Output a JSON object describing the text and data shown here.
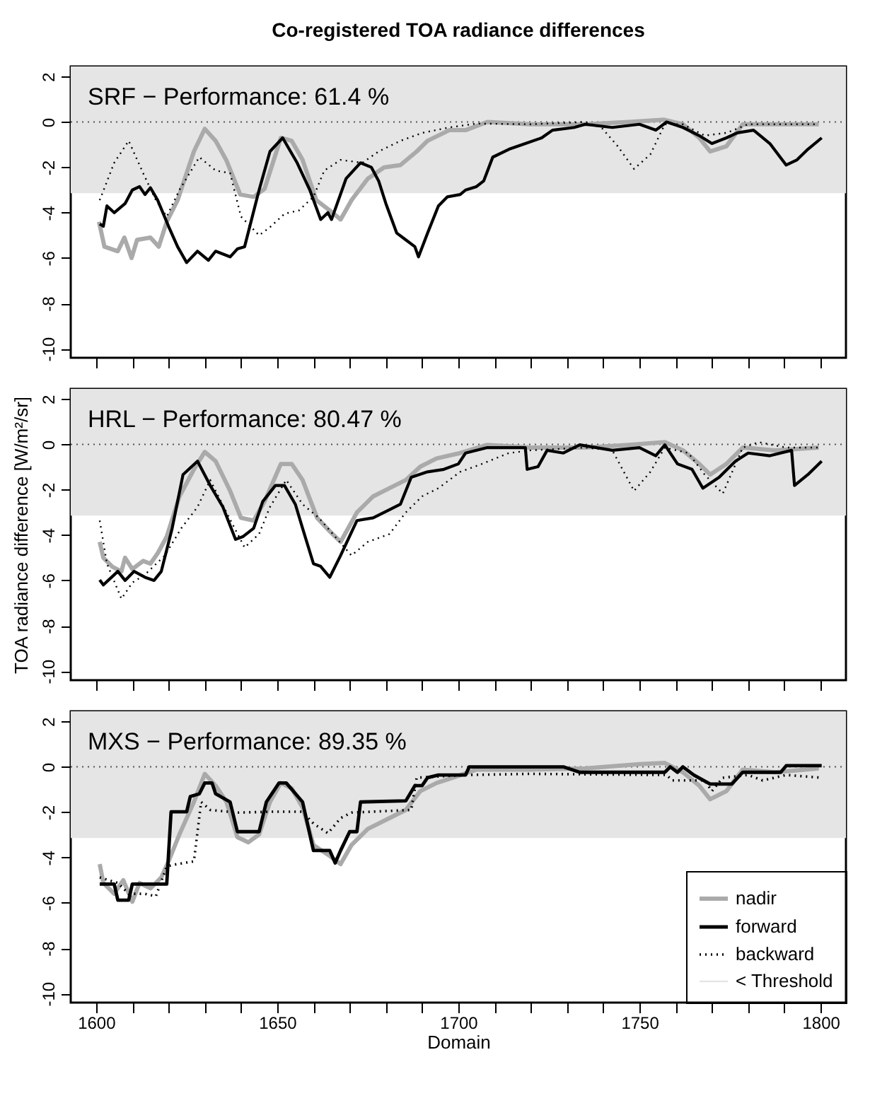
{
  "chart_data": [
    {
      "type": "line",
      "title": "Co-registered TOA radiance differences",
      "annotations": [
        "SRF  − Performance: 61.4 %"
      ],
      "xlim": [
        1593,
        1807
      ],
      "ylim": [
        -10.4,
        2.45
      ],
      "xticks": [
        1600,
        {
          "value": 1610,
          "label": null
        },
        {
          "value": 1620,
          "label": null
        },
        {
          "value": 1630,
          "label": null
        },
        {
          "value": 1640,
          "label": null
        },
        1650,
        {
          "value": 1660,
          "label": null
        },
        {
          "value": 1670,
          "label": null
        },
        {
          "value": 1680,
          "label": null
        },
        {
          "value": 1690,
          "label": null
        },
        1700,
        {
          "value": 1710,
          "label": null
        },
        {
          "value": 1720,
          "label": null
        },
        {
          "value": 1730,
          "label": null
        },
        {
          "value": 1740,
          "label": null
        },
        1750,
        {
          "value": 1760,
          "label": null
        },
        {
          "value": 1770,
          "label": null
        },
        {
          "value": 1780,
          "label": null
        },
        {
          "value": 1790,
          "label": null
        },
        1800
      ],
      "yticks": [
        -10,
        -8,
        -6,
        -4,
        -2,
        0,
        2
      ],
      "tick_labels": "y",
      "grid": false,
      "legend": false,
      "ref_lines": [
        {
          "axis": "y",
          "value": 0,
          "line_style": "dotted",
          "color": "#555555"
        }
      ],
      "bands": [
        {
          "axis": "y",
          "from": -3.14,
          "to": 2.45,
          "color": "#e5e5e5"
        }
      ],
      "series": [
        {
          "color": "#aaaaaa",
          "line_style": "solid",
          "x": [
            1600.8,
            1602.3,
            1606,
            1607.8,
            1609.8,
            1611.3,
            1615,
            1617.3,
            1619.5,
            1622.5,
            1627,
            1630,
            1633,
            1636,
            1639.8,
            1643.5,
            1646.5,
            1651,
            1654,
            1657,
            1660.8,
            1664.5,
            1667.5,
            1670.5,
            1675,
            1679.5,
            1684,
            1688.5,
            1691.5,
            1697.5,
            1702,
            1708,
            1720,
            1735,
            1747,
            1756.8,
            1762,
            1766.5,
            1769.5,
            1774,
            1778.5,
            1787.5,
            1799.5
          ],
          "values": [
            -4.4,
            -5.5,
            -5.7,
            -5.1,
            -6,
            -5.2,
            -5.1,
            -5.5,
            -4.4,
            -3.45,
            -1.3,
            -0.3,
            -0.83,
            -1.7,
            -3.2,
            -3.3,
            -2.95,
            -0.7,
            -0.83,
            -1.67,
            -3.45,
            -3.9,
            -4.3,
            -3.45,
            -2.5,
            -2.0,
            -1.9,
            -1.3,
            -0.83,
            -0.36,
            -0.36,
            0,
            -0.1,
            -0.1,
            0,
            0.1,
            -0.1,
            -0.7,
            -1.3,
            -1.07,
            -0.1,
            -0.1,
            -0.1
          ]
        },
        {
          "color": "#000000",
          "line_style": "solid",
          "x": [
            1601,
            1602,
            1603,
            1605,
            1608,
            1610,
            1612,
            1613.5,
            1615,
            1617,
            1620,
            1622.5,
            1625,
            1628,
            1631,
            1633,
            1637,
            1639,
            1641,
            1645,
            1648,
            1651.5,
            1655.5,
            1659,
            1662,
            1664,
            1665,
            1669,
            1673,
            1676,
            1678,
            1680,
            1683,
            1685.5,
            1688,
            1689,
            1691.5,
            1694.5,
            1697,
            1700.5,
            1702,
            1705,
            1707,
            1709.5,
            1714,
            1718.5,
            1723,
            1726,
            1732,
            1735,
            1742.5,
            1750,
            1754.5,
            1757.5,
            1762,
            1766.5,
            1770,
            1774,
            1777,
            1781.5,
            1786,
            1790.5,
            1793.5,
            1796.5,
            1800.3
          ],
          "values": [
            -4.5,
            -4.6,
            -3.7,
            -4.0,
            -3.6,
            -3.0,
            -2.85,
            -3.2,
            -2.9,
            -3.45,
            -4.6,
            -5.5,
            -6.2,
            -5.7,
            -6.1,
            -5.7,
            -5.95,
            -5.6,
            -5.5,
            -3.0,
            -1.3,
            -0.7,
            -1.8,
            -3.0,
            -4.3,
            -4.0,
            -4.3,
            -2.5,
            -1.8,
            -2.0,
            -2.6,
            -3.6,
            -4.9,
            -5.2,
            -5.5,
            -5.95,
            -4.9,
            -3.7,
            -3.3,
            -3.2,
            -3.0,
            -2.85,
            -2.6,
            -1.55,
            -1.2,
            -0.95,
            -0.7,
            -0.36,
            -0.24,
            -0.1,
            -0.24,
            -0.1,
            -0.36,
            0,
            -0.24,
            -0.6,
            -0.95,
            -0.7,
            -0.48,
            -0.36,
            -0.95,
            -1.9,
            -1.67,
            -1.2,
            -0.7
          ]
        },
        {
          "color": "#000000",
          "line_style": "dotted",
          "x": [
            1601,
            1605,
            1609,
            1613,
            1616.5,
            1619.5,
            1623,
            1628.5,
            1633,
            1637,
            1640,
            1645,
            1648,
            1652,
            1656,
            1660,
            1663,
            1667.5,
            1673.5,
            1678,
            1684,
            1690,
            1697.5,
            1705,
            1720,
            1735,
            1739.5,
            1744,
            1748.5,
            1753,
            1757,
            1762,
            1768,
            1774,
            1780,
            1799.5
          ],
          "values": [
            -3.45,
            -1.8,
            -0.83,
            -2.26,
            -3.45,
            -4.17,
            -3.0,
            -1.55,
            -2.14,
            -2.26,
            -4.17,
            -5.0,
            -4.64,
            -4.05,
            -3.9,
            -3.3,
            -2.14,
            -1.67,
            -1.8,
            -1.3,
            -0.83,
            -0.48,
            -0.24,
            -0.07,
            -0.1,
            0,
            -0.24,
            -1.07,
            -2.07,
            -1.43,
            -0.1,
            -0.1,
            -0.6,
            -0.48,
            -0.1,
            -0.1
          ]
        }
      ]
    },
    {
      "type": "line",
      "ylabel": "TOA radiance difference [W/m²/sr]",
      "annotations": [
        "HRL  − Performance: 80.47 %"
      ],
      "xlim": [
        1593,
        1807
      ],
      "ylim": [
        -10.4,
        2.45
      ],
      "xticks": [
        1600,
        {
          "value": 1610,
          "label": null
        },
        {
          "value": 1620,
          "label": null
        },
        {
          "value": 1630,
          "label": null
        },
        {
          "value": 1640,
          "label": null
        },
        1650,
        {
          "value": 1660,
          "label": null
        },
        {
          "value": 1670,
          "label": null
        },
        {
          "value": 1680,
          "label": null
        },
        {
          "value": 1690,
          "label": null
        },
        1700,
        {
          "value": 1710,
          "label": null
        },
        {
          "value": 1720,
          "label": null
        },
        {
          "value": 1730,
          "label": null
        },
        {
          "value": 1740,
          "label": null
        },
        1750,
        {
          "value": 1760,
          "label": null
        },
        {
          "value": 1770,
          "label": null
        },
        {
          "value": 1780,
          "label": null
        },
        {
          "value": 1790,
          "label": null
        },
        1800
      ],
      "yticks": [
        -10,
        -8,
        -6,
        -4,
        -2,
        0,
        2
      ],
      "tick_labels": "y",
      "grid": false,
      "legend": false,
      "ref_lines": [
        {
          "axis": "y",
          "value": 0,
          "line_style": "dotted",
          "color": "#555555"
        }
      ],
      "bands": [
        {
          "axis": "y",
          "from": -3.14,
          "to": 2.45,
          "color": "#e5e5e5"
        }
      ],
      "series": [
        {
          "color": "#aaaaaa",
          "line_style": "solid",
          "x": [
            1601,
            1602,
            1604.5,
            1607,
            1608,
            1610,
            1613,
            1615,
            1617,
            1619.5,
            1623,
            1627,
            1630,
            1633,
            1637,
            1640,
            1643.5,
            1646.5,
            1651,
            1654,
            1657,
            1661,
            1664.5,
            1667.5,
            1672,
            1676.5,
            1681,
            1685.5,
            1689.5,
            1694,
            1700.5,
            1708,
            1720,
            1735,
            1747,
            1757,
            1762,
            1766.5,
            1769.5,
            1774,
            1778.5,
            1787.5,
            1799.5
          ],
          "values": [
            -4.3,
            -5.0,
            -5.4,
            -5.6,
            -5.0,
            -5.5,
            -5.14,
            -5.26,
            -4.8,
            -4.07,
            -2.3,
            -1.1,
            -0.33,
            -0.74,
            -2.05,
            -3.24,
            -3.36,
            -2.52,
            -0.86,
            -0.86,
            -1.57,
            -3.24,
            -3.83,
            -4.3,
            -3.0,
            -2.29,
            -1.93,
            -1.57,
            -0.98,
            -0.62,
            -0.38,
            -0.02,
            -0.14,
            -0.14,
            -0.02,
            0.1,
            -0.26,
            -0.86,
            -1.33,
            -0.86,
            -0.14,
            -0.26,
            -0.14
          ]
        },
        {
          "color": "#000000",
          "line_style": "solid",
          "x": [
            1601,
            1602,
            1606,
            1608,
            1610.5,
            1613.5,
            1616,
            1618,
            1621,
            1624,
            1628,
            1631.5,
            1635,
            1638.5,
            1640.5,
            1643.5,
            1646,
            1649.5,
            1652,
            1655,
            1657,
            1660,
            1662,
            1664.5,
            1667.5,
            1672,
            1676.5,
            1681,
            1684,
            1687,
            1691.5,
            1696,
            1700,
            1702,
            1708,
            1718.5,
            1719,
            1722,
            1724.5,
            1729,
            1733.5,
            1742.5,
            1750,
            1754.5,
            1757,
            1760.5,
            1764.5,
            1767.5,
            1772,
            1776.5,
            1780,
            1786,
            1792,
            1792.8,
            1796.5,
            1800.3
          ],
          "values": [
            -5.98,
            -6.2,
            -5.6,
            -6.0,
            -5.6,
            -5.86,
            -6.0,
            -5.6,
            -3.7,
            -1.33,
            -0.74,
            -1.81,
            -2.76,
            -4.19,
            -4.07,
            -3.7,
            -2.52,
            -1.81,
            -1.81,
            -2.64,
            -3.7,
            -5.26,
            -5.38,
            -5.86,
            -4.9,
            -3.36,
            -3.24,
            -2.88,
            -2.64,
            -1.45,
            -1.21,
            -1.1,
            -0.86,
            -0.38,
            -0.14,
            -0.14,
            -1.1,
            -0.98,
            -0.26,
            -0.38,
            -0.02,
            -0.26,
            -0.14,
            -0.5,
            -0.02,
            -0.86,
            -1.1,
            -1.93,
            -1.45,
            -0.74,
            -0.38,
            -0.5,
            -0.26,
            -1.81,
            -1.33,
            -0.74
          ]
        },
        {
          "color": "#000000",
          "line_style": "dotted",
          "x": [
            1601,
            1603,
            1607,
            1610,
            1613.5,
            1619,
            1623.5,
            1628,
            1631.5,
            1636,
            1641,
            1645,
            1648,
            1652.5,
            1657,
            1661.5,
            1666,
            1670.5,
            1675,
            1681,
            1685.5,
            1690,
            1694.5,
            1700.5,
            1706.5,
            1714,
            1720,
            1735,
            1742.5,
            1748.5,
            1753,
            1757,
            1763.5,
            1768,
            1773,
            1778.5,
            1783,
            1790.5,
            1799.5
          ],
          "values": [
            -3.36,
            -5.26,
            -6.81,
            -6.1,
            -5.74,
            -4.9,
            -3.7,
            -2.76,
            -1.57,
            -3.0,
            -4.55,
            -3.95,
            -2.76,
            -1.57,
            -2.64,
            -3.24,
            -4.07,
            -4.9,
            -4.3,
            -3.95,
            -3.0,
            -2.29,
            -1.93,
            -1.21,
            -0.86,
            -0.38,
            -0.26,
            -0.14,
            -0.26,
            -2.05,
            -1.21,
            -0.14,
            -0.38,
            -1.33,
            -2.17,
            -0.14,
            0.1,
            -0.14,
            -0.14
          ]
        }
      ]
    },
    {
      "type": "line",
      "xlabel": "Domain",
      "annotations": [
        "MXS  − Performance: 89.35 %"
      ],
      "xlim": [
        1593,
        1807
      ],
      "ylim": [
        -10.4,
        2.45
      ],
      "xticks": [
        1600,
        {
          "value": 1610,
          "label": null
        },
        {
          "value": 1620,
          "label": null
        },
        {
          "value": 1630,
          "label": null
        },
        {
          "value": 1640,
          "label": null
        },
        1650,
        {
          "value": 1660,
          "label": null
        },
        {
          "value": 1670,
          "label": null
        },
        {
          "value": 1680,
          "label": null
        },
        {
          "value": 1690,
          "label": null
        },
        1700,
        {
          "value": 1710,
          "label": null
        },
        {
          "value": 1720,
          "label": null
        },
        {
          "value": 1730,
          "label": null
        },
        {
          "value": 1740,
          "label": null
        },
        1750,
        {
          "value": 1760,
          "label": null
        },
        {
          "value": 1770,
          "label": null
        },
        {
          "value": 1780,
          "label": null
        },
        {
          "value": 1790,
          "label": null
        },
        1800
      ],
      "yticks": [
        -10,
        -8,
        -6,
        -4,
        -2,
        0,
        2
      ],
      "grid": false,
      "legend": "bottom right",
      "ref_lines": [
        {
          "axis": "y",
          "value": 0,
          "line_style": "dotted",
          "color": "#555555"
        }
      ],
      "bands": [
        {
          "axis": "y",
          "from": -3.14,
          "to": 2.45,
          "color": "#e5e5e5",
          "label": "< Threshold"
        }
      ],
      "series": [
        {
          "name": "nadir",
          "color": "#aaaaaa",
          "line_style": "solid",
          "x": [
            1601,
            1602,
            1605,
            1607.5,
            1610,
            1612,
            1615,
            1618,
            1620,
            1623,
            1627,
            1630,
            1633,
            1636,
            1639,
            1642,
            1645,
            1648,
            1651,
            1654,
            1657,
            1660,
            1664.5,
            1667.5,
            1670.5,
            1675,
            1681,
            1685.5,
            1689.5,
            1694,
            1698.5,
            1705,
            1720,
            1735,
            1750,
            1757,
            1762,
            1766.5,
            1769.5,
            1774,
            1778.5,
            1787.5,
            1799.5
          ],
          "values": [
            -4.29,
            -5.12,
            -5.6,
            -5.0,
            -5.95,
            -5.12,
            -5.36,
            -4.88,
            -4.17,
            -2.98,
            -1.55,
            -0.31,
            -0.83,
            -1.55,
            -3.1,
            -3.33,
            -2.98,
            -1.55,
            -0.71,
            -0.95,
            -1.79,
            -3.45,
            -3.93,
            -4.29,
            -3.45,
            -2.74,
            -2.26,
            -1.9,
            -1.07,
            -0.71,
            -0.48,
            -0.12,
            -0.12,
            -0.07,
            0.12,
            0.17,
            -0.24,
            -0.83,
            -1.43,
            -1.07,
            -0.12,
            -0.24,
            -0.07
          ]
        },
        {
          "name": "forward",
          "color": "#000000",
          "line_style": "solid",
          "x": [
            1601,
            1605,
            1606,
            1609,
            1610,
            1619.5,
            1620.7,
            1625,
            1626,
            1628.5,
            1630,
            1632,
            1633,
            1637,
            1639,
            1645,
            1647,
            1650.5,
            1652.5,
            1657,
            1660,
            1664.5,
            1666,
            1667.5,
            1670,
            1672,
            1673,
            1685.5,
            1688,
            1690,
            1691.5,
            1694.5,
            1702,
            1703,
            1729,
            1733.5,
            1757,
            1758.5,
            1760.5,
            1762,
            1765,
            1769.5,
            1775.5,
            1778.5,
            1789,
            1790.5,
            1800.3
          ],
          "values": [
            -5.17,
            -5.17,
            -5.88,
            -5.88,
            -5.17,
            -5.17,
            -1.98,
            -1.98,
            -1.31,
            -1.19,
            -0.71,
            -0.71,
            -1.19,
            -1.55,
            -2.86,
            -2.86,
            -1.55,
            -0.71,
            -0.71,
            -1.55,
            -3.69,
            -3.69,
            -4.24,
            -3.69,
            -2.86,
            -2.86,
            -1.55,
            -1.5,
            -0.83,
            -0.83,
            -0.48,
            -0.36,
            -0.36,
            0,
            0,
            -0.24,
            -0.24,
            0,
            -0.24,
            0,
            -0.36,
            -0.76,
            -0.76,
            -0.24,
            -0.24,
            0.05,
            0.05
          ]
        },
        {
          "name": "backward",
          "color": "#000000",
          "line_style": "dotted",
          "x": [
            1601,
            1606,
            1609,
            1613.5,
            1616.5,
            1619.5,
            1621,
            1625.5,
            1627,
            1629,
            1631.5,
            1639,
            1648,
            1657,
            1660,
            1664,
            1667.5,
            1670.5,
            1687,
            1688.5,
            1702,
            1720,
            1757.5,
            1759,
            1768,
            1770,
            1773,
            1780,
            1784,
            1790.5,
            1800.3
          ],
          "values": [
            -4.88,
            -5.12,
            -5.6,
            -5.6,
            -5.71,
            -4.4,
            -4.33,
            -4.21,
            -4.17,
            -1.55,
            -1.9,
            -2.02,
            -1.98,
            -1.98,
            -2.5,
            -2.93,
            -2.26,
            -2.02,
            -1.9,
            -0.48,
            -0.36,
            -0.31,
            -0.36,
            -0.6,
            -0.6,
            -1.07,
            -0.48,
            -0.36,
            -0.6,
            -0.36,
            -0.48
          ]
        }
      ]
    }
  ]
}
